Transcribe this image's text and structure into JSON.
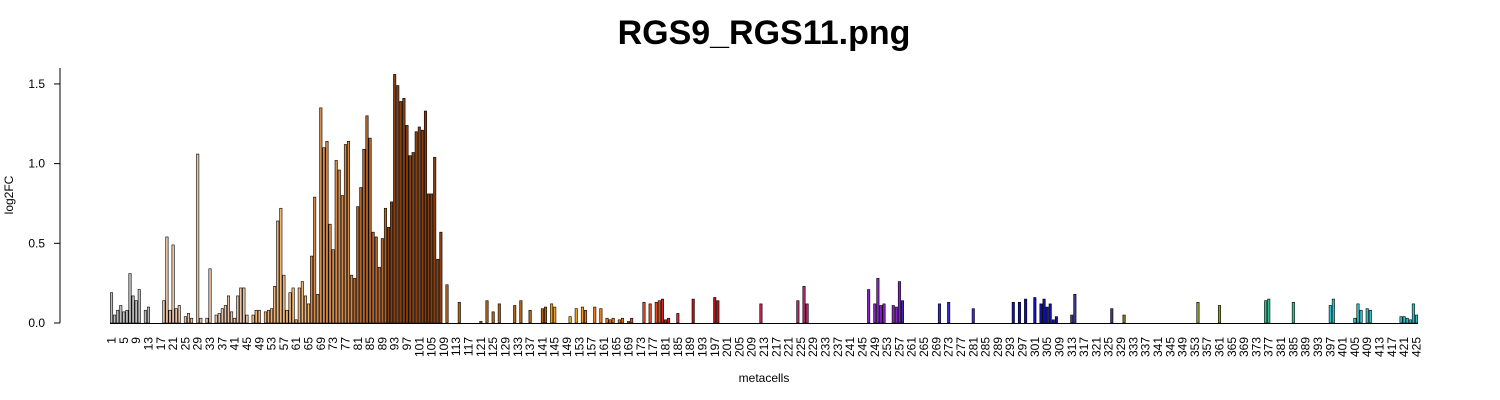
{
  "chart_data": {
    "type": "bar",
    "title": "RGS9_RGS11.png",
    "xlabel": "metacells",
    "ylabel": "log2FC",
    "ylim": [
      0,
      1.6
    ],
    "y_ticks": [
      "0.0",
      "0.5",
      "1.0",
      "1.5"
    ],
    "x_range": [
      1,
      396
    ],
    "x_tick_step": 4,
    "grid": false,
    "legend": "none",
    "values": [
      0.19,
      0.05,
      0.08,
      0.11,
      0.07,
      0.08,
      0.31,
      0.17,
      0.14,
      0.21,
      0,
      0.08,
      0.1,
      0,
      0,
      0,
      0,
      0.14,
      0.54,
      0.08,
      0.49,
      0.09,
      0.11,
      0,
      0.04,
      0.06,
      0.03,
      0,
      1.06,
      0.03,
      0,
      0.03,
      0.34,
      0,
      0.05,
      0.06,
      0.09,
      0.11,
      0.17,
      0.07,
      0.03,
      0.17,
      0.22,
      0.22,
      0.05,
      0,
      0.05,
      0.08,
      0.08,
      0,
      0.07,
      0.08,
      0.09,
      0.23,
      0.64,
      0.72,
      0.3,
      0.08,
      0.19,
      0.22,
      0.02,
      0.22,
      0.26,
      0.17,
      0.12,
      0.42,
      0.79,
      0.18,
      1.35,
      1.1,
      1.14,
      0.62,
      0.46,
      1.02,
      0.96,
      0.8,
      1.12,
      1.14,
      0.3,
      0.28,
      0.73,
      0.85,
      1.09,
      1.3,
      1.16,
      0.57,
      0.54,
      0.35,
      0.53,
      0.72,
      0.6,
      0.76,
      1.56,
      1.49,
      1.39,
      1.41,
      1.24,
      1.05,
      1.07,
      1.2,
      1.23,
      1.21,
      1.33,
      0.81,
      0.81,
      1.04,
      0.4,
      0.57,
      0,
      0.24,
      0,
      0,
      0,
      0.13,
      0,
      0,
      0,
      0,
      0,
      0,
      0.01,
      0,
      0.14,
      0,
      0.07,
      0,
      0.12,
      0,
      0,
      0,
      0,
      0.11,
      0,
      0.14,
      0,
      0,
      0.08,
      0,
      0,
      0,
      0.09,
      0.1,
      0,
      0.12,
      0.1,
      0,
      0,
      0,
      0,
      0.04,
      0,
      0.09,
      0,
      0.1,
      0.08,
      0,
      0,
      0.1,
      0,
      0.09,
      0,
      0.03,
      0.02,
      0.03,
      0,
      0.02,
      0.03,
      0,
      0.01,
      0.03,
      0,
      0,
      0,
      0.13,
      0,
      0.12,
      0,
      0.13,
      0.14,
      0.15,
      0.02,
      0.03,
      0,
      0,
      0.06,
      0,
      0,
      0,
      0,
      0.15,
      0,
      0,
      0,
      0,
      0,
      0,
      0.16,
      0.14,
      0,
      0,
      0,
      0,
      0,
      0,
      0,
      0,
      0,
      0,
      0,
      0,
      0,
      0.12,
      0,
      0,
      0,
      0,
      0,
      0,
      0,
      0,
      0,
      0,
      0,
      0.14,
      0,
      0.23,
      0.12,
      0,
      0,
      0,
      0,
      0,
      0,
      0,
      0,
      0,
      0,
      0,
      0,
      0,
      0,
      0,
      0,
      0,
      0,
      0,
      0.21,
      0,
      0.12,
      0.28,
      0.11,
      0.12,
      0,
      0,
      0.11,
      0.1,
      0.26,
      0.14,
      0,
      0,
      0,
      0,
      0,
      0,
      0,
      0,
      0,
      0,
      0,
      0.12,
      0,
      0,
      0.13,
      0,
      0,
      0,
      0,
      0,
      0,
      0,
      0.09,
      0,
      0,
      0,
      0,
      0,
      0,
      0,
      0,
      0,
      0,
      0,
      0,
      0.13,
      0,
      0.13,
      0,
      0.15,
      0,
      0,
      0.16,
      0,
      0.12,
      0.15,
      0.1,
      0.12,
      0.02,
      0.04,
      0,
      0,
      0,
      0,
      0.05,
      0.18,
      0,
      0,
      0,
      0,
      0,
      0,
      0,
      0,
      0,
      0,
      0,
      0.09,
      0,
      0,
      0,
      0.05,
      0,
      0,
      0,
      0,
      0,
      0,
      0,
      0,
      0,
      0,
      0,
      0,
      0,
      0,
      0,
      0,
      0,
      0,
      0,
      0,
      0,
      0,
      0,
      0.13,
      0,
      0,
      0,
      0,
      0,
      0,
      0.11,
      0,
      0,
      0,
      0,
      0,
      0,
      0,
      0,
      0,
      0,
      0,
      0,
      0,
      0,
      0.14,
      0.15,
      0,
      0,
      0,
      0,
      0,
      0,
      0,
      0.13,
      0,
      0,
      0,
      0,
      0,
      0,
      0,
      0,
      0,
      0,
      0,
      0.11,
      0.15,
      0,
      0,
      0,
      0,
      0,
      0,
      0.03,
      0.12,
      0.08,
      0,
      0.09,
      0.08,
      0,
      0,
      0,
      0,
      0,
      0,
      0,
      0,
      0,
      0.04,
      0.04,
      0.03,
      0.02,
      0.12,
      0.05
    ],
    "color_stops": [
      {
        "from": 1,
        "color": "#bdbdbd"
      },
      {
        "from": 14,
        "color": "#e8c3a8"
      },
      {
        "from": 46,
        "color": "#f0b474"
      },
      {
        "from": 66,
        "color": "#d68a4a"
      },
      {
        "from": 80,
        "color": "#b5652a"
      },
      {
        "from": 91,
        "color": "#8a3f0f"
      },
      {
        "from": 110,
        "color": "#ad6414"
      },
      {
        "from": 144,
        "color": "#f0a020"
      },
      {
        "from": 155,
        "color": "#f07818"
      },
      {
        "from": 170,
        "color": "#e04a20"
      },
      {
        "from": 180,
        "color": "#e02020"
      },
      {
        "from": 186,
        "color": "#c01010"
      },
      {
        "from": 205,
        "color": "#c4224a"
      },
      {
        "from": 220,
        "color": "#b02a6a"
      },
      {
        "from": 235,
        "color": "#8a20c8"
      },
      {
        "from": 258,
        "color": "#3a2ad0"
      },
      {
        "from": 283,
        "color": "#1212b0"
      },
      {
        "from": 310,
        "color": "#3a3a8a"
      },
      {
        "from": 330,
        "color": "#8a6a20"
      },
      {
        "from": 346,
        "color": "#b0a020"
      },
      {
        "from": 354,
        "color": "#8a9a30"
      },
      {
        "from": 362,
        "color": "#3aaa50"
      },
      {
        "from": 372,
        "color": "#30c090"
      },
      {
        "from": 386,
        "color": "#30c0c8"
      }
    ]
  }
}
